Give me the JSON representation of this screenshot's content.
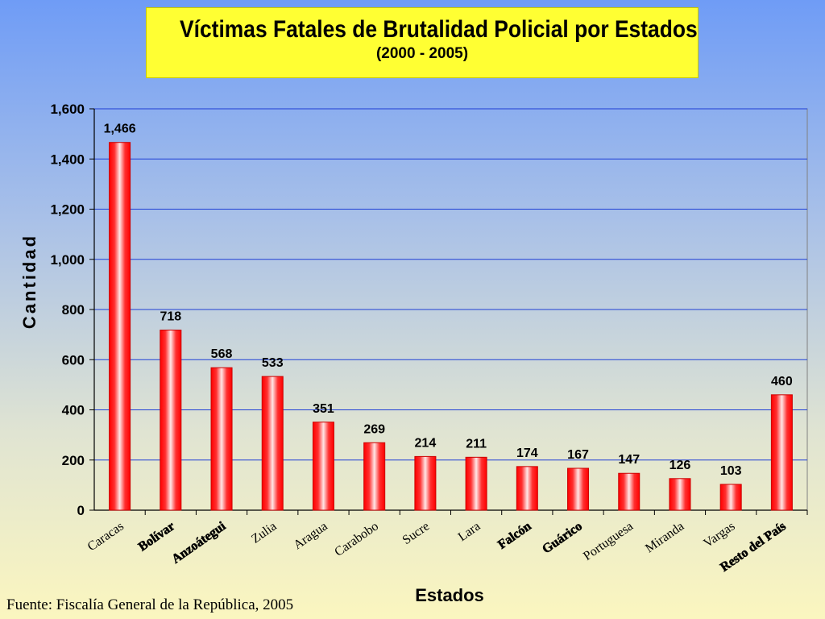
{
  "chart_data": {
    "type": "bar",
    "title": "Víctimas Fatales de Brutalidad Policial por Estados",
    "subtitle": "(2000 - 2005)",
    "xlabel": "Estados",
    "ylabel": "Cantidad",
    "ylim": [
      0,
      1600
    ],
    "yticks": [
      "0",
      "200",
      "400",
      "600",
      "800",
      "1,000",
      "1,200",
      "1,400",
      "1,600"
    ],
    "grid": true,
    "categories": [
      "Caracas",
      "Bolívar",
      "Anzoátegui",
      "Zulia",
      "Aragua",
      "Carabobo",
      "Sucre",
      "Lara",
      "Falcón",
      "Guárico",
      "Portuguesa",
      "Miranda",
      "Vargas",
      "Resto del País"
    ],
    "values": [
      1466,
      718,
      568,
      533,
      351,
      269,
      214,
      211,
      174,
      167,
      147,
      126,
      103,
      460
    ],
    "data_labels": [
      "1,466",
      "718",
      "568",
      "533",
      "351",
      "269",
      "214",
      "211",
      "174",
      "167",
      "147",
      "126",
      "103",
      "460"
    ],
    "bold_categories": [
      "Bolívar",
      "Anzoátegui",
      "Falcón",
      "Guárico",
      "Resto del País"
    ],
    "bar_color": "#ff0000",
    "gridline_color": "#1f3fd6"
  },
  "source": "Fuente: Fiscalía General de la República, 2005"
}
